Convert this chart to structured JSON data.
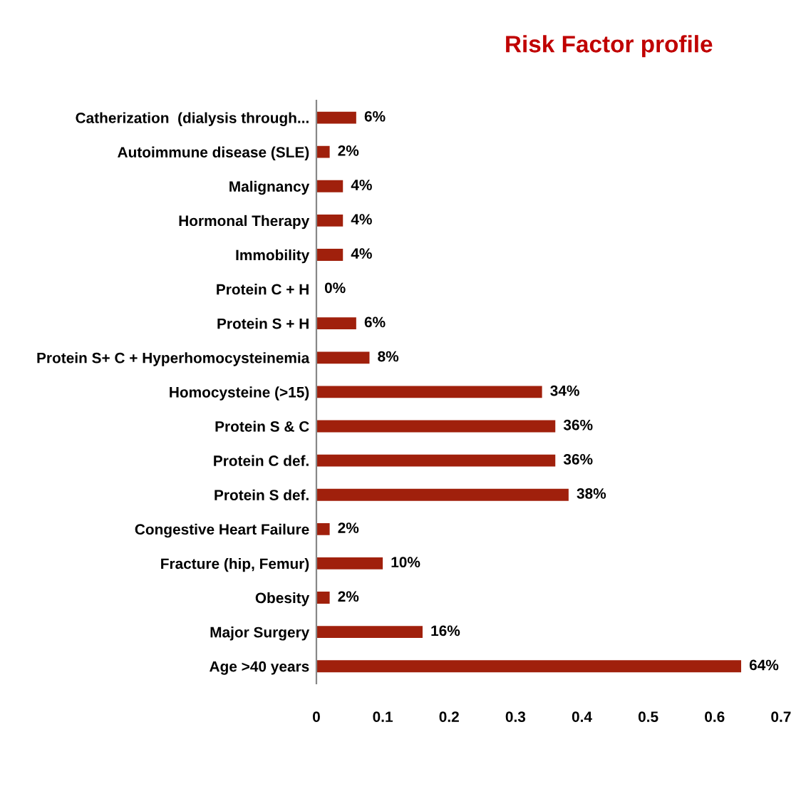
{
  "chart_data": {
    "type": "bar",
    "orientation": "horizontal",
    "title": "Risk Factor profile",
    "categories": [
      "Catherization  (dialysis through...",
      "Autoimmune disease (SLE)",
      "Malignancy",
      "Hormonal Therapy",
      "Immobility",
      "Protein C + H",
      "Protein S + H",
      "Protein S+ C + Hyperhomocysteinemia",
      "Homocysteine (>15)",
      "Protein S & C",
      "Protein C def.",
      "Protein S def.",
      "Congestive Heart Failure",
      "Fracture (hip, Femur)",
      "Obesity",
      "Major Surgery",
      "Age >40 years"
    ],
    "values": [
      0.06,
      0.02,
      0.04,
      0.04,
      0.04,
      0,
      0.06,
      0.08,
      0.34,
      0.36,
      0.36,
      0.38,
      0.02,
      0.1,
      0.02,
      0.16,
      0.64
    ],
    "value_labels": [
      "6%",
      "2%",
      "4%",
      "4%",
      "4%",
      "0%",
      "6%",
      "8%",
      "34%",
      "36%",
      "36%",
      "38%",
      "2%",
      "10%",
      "2%",
      "16%",
      "64%"
    ],
    "color": "#a0200c",
    "xlim": [
      0,
      0.7
    ],
    "xticks": [
      0,
      0.1,
      0.2,
      0.3,
      0.4,
      0.5,
      0.6,
      0.7
    ],
    "grid": false,
    "legend": false
  }
}
